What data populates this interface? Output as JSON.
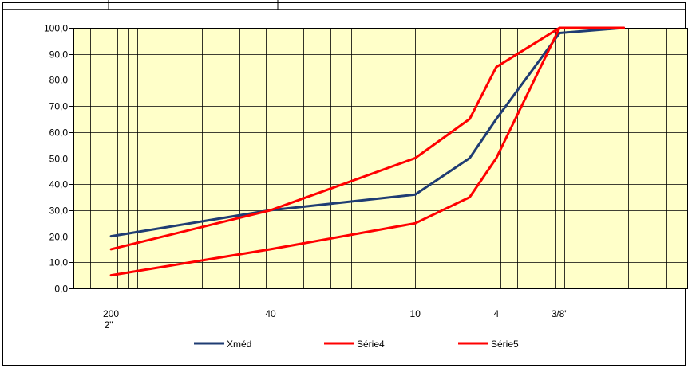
{
  "chart_data": {
    "type": "line",
    "x_scale": "log",
    "x_reversed": true,
    "xlim_mm": [
      0.05,
      38.0
    ],
    "ylim": [
      0,
      100
    ],
    "y_major_step": 10,
    "y_tick_labels": [
      "0,0",
      "10,0",
      "20,0",
      "30,0",
      "40,0",
      "50,0",
      "60,0",
      "70,0",
      "80,0",
      "90,0",
      "100,0"
    ],
    "x_tick_labels": [
      {
        "label": "200",
        "x": 0.075
      },
      {
        "label": "40",
        "x": 0.42
      },
      {
        "label": "10",
        "x": 2.0
      },
      {
        "label": "4",
        "x": 4.8
      },
      {
        "label": "3/8\"",
        "x": 9.5
      },
      {
        "label": "2\"",
        "x": 50.0
      }
    ],
    "plot_area_color": "#ffffc9",
    "grid": true,
    "legend_position": "bottom",
    "series": [
      {
        "name": "Xméd",
        "color": "#1f3c73",
        "points": [
          [
            0.075,
            20
          ],
          [
            0.42,
            30
          ],
          [
            2.0,
            36
          ],
          [
            3.6,
            50
          ],
          [
            4.8,
            65
          ],
          [
            9.5,
            98
          ],
          [
            19.0,
            100
          ]
        ]
      },
      {
        "name": "Série4",
        "color": "#ff0000",
        "points": [
          [
            0.075,
            15
          ],
          [
            0.42,
            30
          ],
          [
            2.0,
            50
          ],
          [
            3.6,
            65
          ],
          [
            4.8,
            85
          ],
          [
            9.5,
            100
          ],
          [
            19.0,
            100
          ]
        ]
      },
      {
        "name": "Série5",
        "color": "#ff0000",
        "points": [
          [
            0.075,
            5
          ],
          [
            0.42,
            15
          ],
          [
            2.0,
            25
          ],
          [
            3.6,
            35
          ],
          [
            4.8,
            50
          ],
          [
            9.5,
            100
          ],
          [
            19.0,
            100
          ]
        ]
      }
    ]
  }
}
